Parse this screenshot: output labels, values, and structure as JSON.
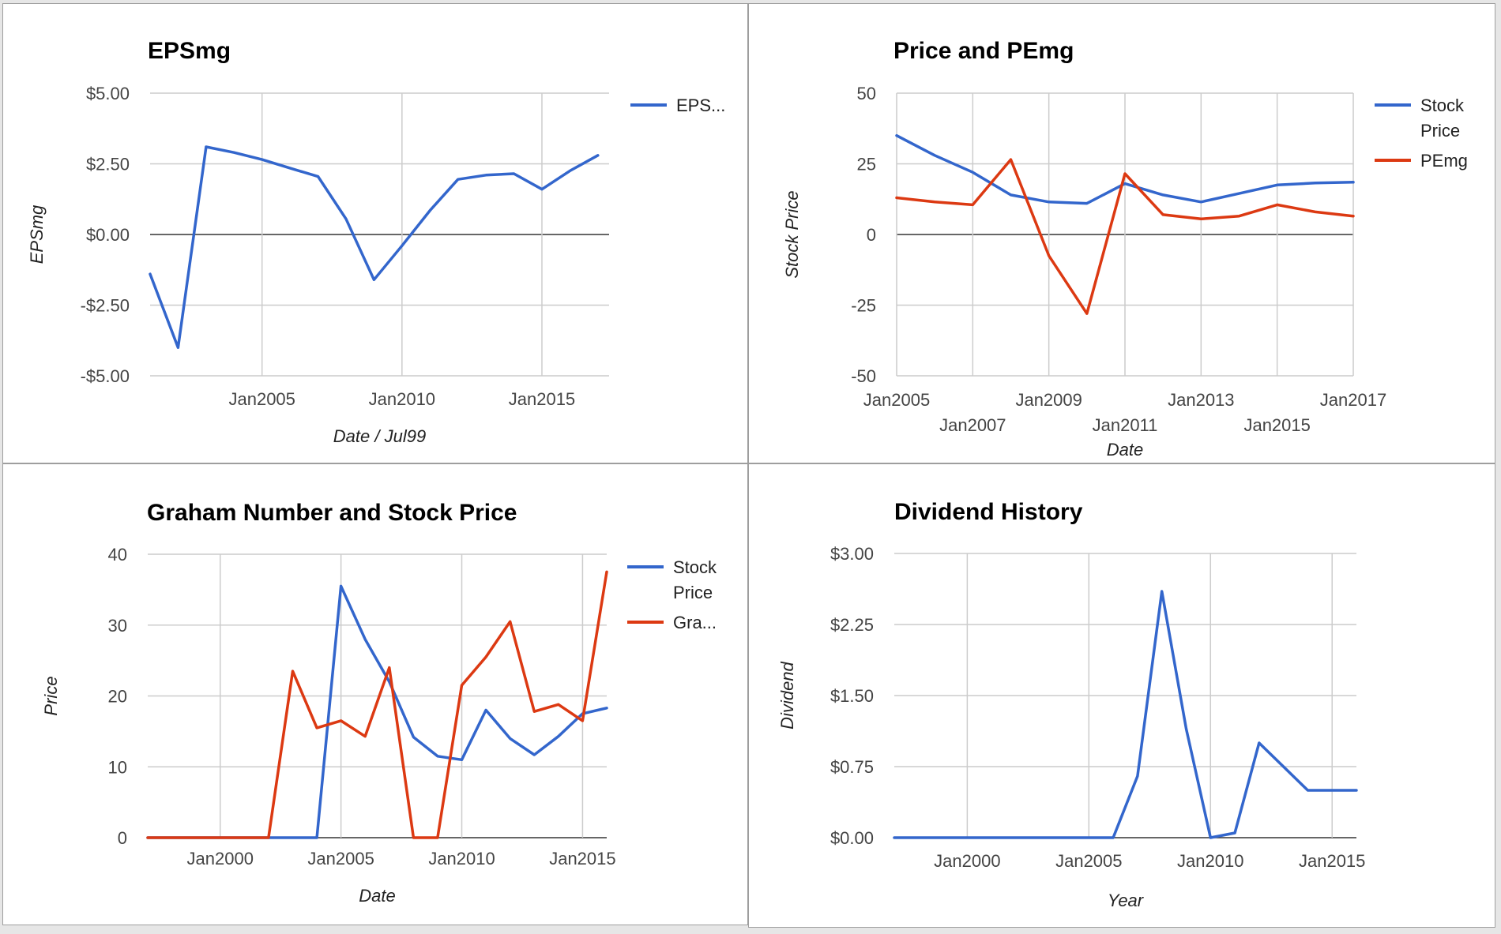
{
  "colors": {
    "blue": "#3366cc",
    "red": "#dc3912"
  },
  "chart_data": [
    {
      "type": "line",
      "title": "EPSmg",
      "xlabel": "Date / Jul99",
      "ylabel": "EPSmg",
      "xlim": [
        2001,
        2017.4
      ],
      "ylim": [
        -5,
        5
      ],
      "yticks": [
        {
          "v": 5,
          "label": "$5.00"
        },
        {
          "v": 2.5,
          "label": "$2.50"
        },
        {
          "v": 0,
          "label": "$0.00"
        },
        {
          "v": -2.5,
          "label": "-$2.50"
        },
        {
          "v": -5,
          "label": "-$5.00"
        }
      ],
      "xticks": [
        {
          "v": 2005,
          "label": "Jan2005"
        },
        {
          "v": 2010,
          "label": "Jan2010"
        },
        {
          "v": 2015,
          "label": "Jan2015"
        }
      ],
      "grid": true,
      "legend": "right",
      "series": [
        {
          "name": "EPS...",
          "color": "#3366cc",
          "x": [
            2001.0,
            2002.0,
            2003.0,
            2004.0,
            2005.0,
            2006.0,
            2007.0,
            2008.0,
            2009.0,
            2010.0,
            2011.0,
            2012.0,
            2013.0,
            2014.0,
            2015.0,
            2016.0,
            2017.0
          ],
          "y": [
            -1.4,
            -4.0,
            3.1,
            2.9,
            2.65,
            2.35,
            2.05,
            0.55,
            -1.6,
            -0.4,
            0.85,
            1.95,
            2.1,
            2.15,
            1.6,
            2.25,
            2.8
          ]
        }
      ]
    },
    {
      "type": "line",
      "title": "Price and PEmg",
      "xlabel": "Date",
      "ylabel": "Stock Price",
      "xlim": [
        2005,
        2017
      ],
      "ylim": [
        -50,
        50
      ],
      "yticks": [
        {
          "v": 50,
          "label": "50"
        },
        {
          "v": 25,
          "label": "25"
        },
        {
          "v": 0,
          "label": "0"
        },
        {
          "v": -25,
          "label": "-25"
        },
        {
          "v": -50,
          "label": "-50"
        }
      ],
      "xticks": [
        {
          "v": 2005,
          "label": "Jan2005",
          "row": 1
        },
        {
          "v": 2007,
          "label": "Jan2007",
          "row": 2
        },
        {
          "v": 2009,
          "label": "Jan2009",
          "row": 1
        },
        {
          "v": 2011,
          "label": "Jan2011",
          "row": 2
        },
        {
          "v": 2013,
          "label": "Jan2013",
          "row": 1
        },
        {
          "v": 2015,
          "label": "Jan2015",
          "row": 2
        },
        {
          "v": 2017,
          "label": "Jan2017",
          "row": 1
        }
      ],
      "grid": true,
      "legend": "right",
      "series": [
        {
          "name": "Stock Price",
          "color": "#3366cc",
          "x": [
            2005.0,
            2006.0,
            2007.0,
            2008.0,
            2009.0,
            2010.0,
            2011.0,
            2012.0,
            2013.0,
            2014.0,
            2015.0,
            2016.0,
            2017.0
          ],
          "y": [
            35,
            28,
            22,
            14,
            11.5,
            11,
            18,
            14,
            11.5,
            14.5,
            17.5,
            18.2,
            18.5
          ]
        },
        {
          "name": "PEmg",
          "color": "#dc3912",
          "x": [
            2005.0,
            2006.0,
            2007.0,
            2008.0,
            2009.0,
            2010.0,
            2011.0,
            2012.0,
            2013.0,
            2014.0,
            2015.0,
            2016.0,
            2017.0
          ],
          "y": [
            13,
            11.5,
            10.5,
            26.5,
            -7.5,
            -28,
            21.5,
            7,
            5.5,
            6.5,
            10.5,
            8,
            6.5
          ]
        }
      ]
    },
    {
      "type": "line",
      "title": "Graham Number and Stock Price",
      "xlabel": "Date",
      "ylabel": "Price",
      "xlim": [
        1997,
        2016
      ],
      "ylim": [
        0,
        40
      ],
      "yticks": [
        {
          "v": 40,
          "label": "40"
        },
        {
          "v": 30,
          "label": "30"
        },
        {
          "v": 20,
          "label": "20"
        },
        {
          "v": 10,
          "label": "10"
        },
        {
          "v": 0,
          "label": "0"
        }
      ],
      "xticks": [
        {
          "v": 2000,
          "label": "Jan2000"
        },
        {
          "v": 2005,
          "label": "Jan2005"
        },
        {
          "v": 2010,
          "label": "Jan2010"
        },
        {
          "v": 2015,
          "label": "Jan2015"
        }
      ],
      "grid": true,
      "legend": "right",
      "series": [
        {
          "name": "Stock Price",
          "color": "#3366cc",
          "x": [
            1997.0,
            2004.0,
            2005.0,
            2006.0,
            2007.0,
            2008.0,
            2009.0,
            2010.0,
            2011.0,
            2012.0,
            2013.0,
            2014.0,
            2015.0,
            2016.0
          ],
          "y": [
            0,
            0,
            35.5,
            28,
            22,
            14.2,
            11.5,
            11,
            18,
            14,
            11.7,
            14.3,
            17.5,
            18.3
          ]
        },
        {
          "name": "Gra...",
          "color": "#dc3912",
          "x": [
            1997.0,
            2002.0,
            2003.0,
            2004.0,
            2005.0,
            2006.0,
            2007.0,
            2008.0,
            2009.0,
            2010.0,
            2011.0,
            2012.0,
            2013.0,
            2014.0,
            2015.0,
            2016.0
          ],
          "y": [
            0,
            0,
            23.5,
            15.5,
            16.5,
            14.3,
            24,
            0,
            0,
            21.5,
            25.5,
            30.5,
            17.8,
            18.8,
            16.5,
            37.5
          ]
        }
      ]
    },
    {
      "type": "line",
      "title": "Dividend History",
      "xlabel": "Year",
      "ylabel": "Dividend",
      "xlim": [
        1997,
        2016
      ],
      "ylim": [
        0,
        3
      ],
      "yticks": [
        {
          "v": 3,
          "label": "$3.00"
        },
        {
          "v": 2.25,
          "label": "$2.25"
        },
        {
          "v": 1.5,
          "label": "$1.50"
        },
        {
          "v": 0.75,
          "label": "$0.75"
        },
        {
          "v": 0,
          "label": "$0.00"
        }
      ],
      "xticks": [
        {
          "v": 2000,
          "label": "Jan2000"
        },
        {
          "v": 2005,
          "label": "Jan2005"
        },
        {
          "v": 2010,
          "label": "Jan2010"
        },
        {
          "v": 2015,
          "label": "Jan2015"
        }
      ],
      "grid": true,
      "legend": "none",
      "series": [
        {
          "name": "",
          "color": "#3366cc",
          "x": [
            1997.0,
            2006.0,
            2007.0,
            2008.0,
            2009.0,
            2010.0,
            2011.0,
            2012.0,
            2013.0,
            2014.0,
            2015.0,
            2016.0
          ],
          "y": [
            0,
            0,
            0.65,
            2.6,
            1.15,
            0,
            0.05,
            1.0,
            0.75,
            0.5,
            0.5,
            0.5
          ]
        }
      ]
    }
  ]
}
